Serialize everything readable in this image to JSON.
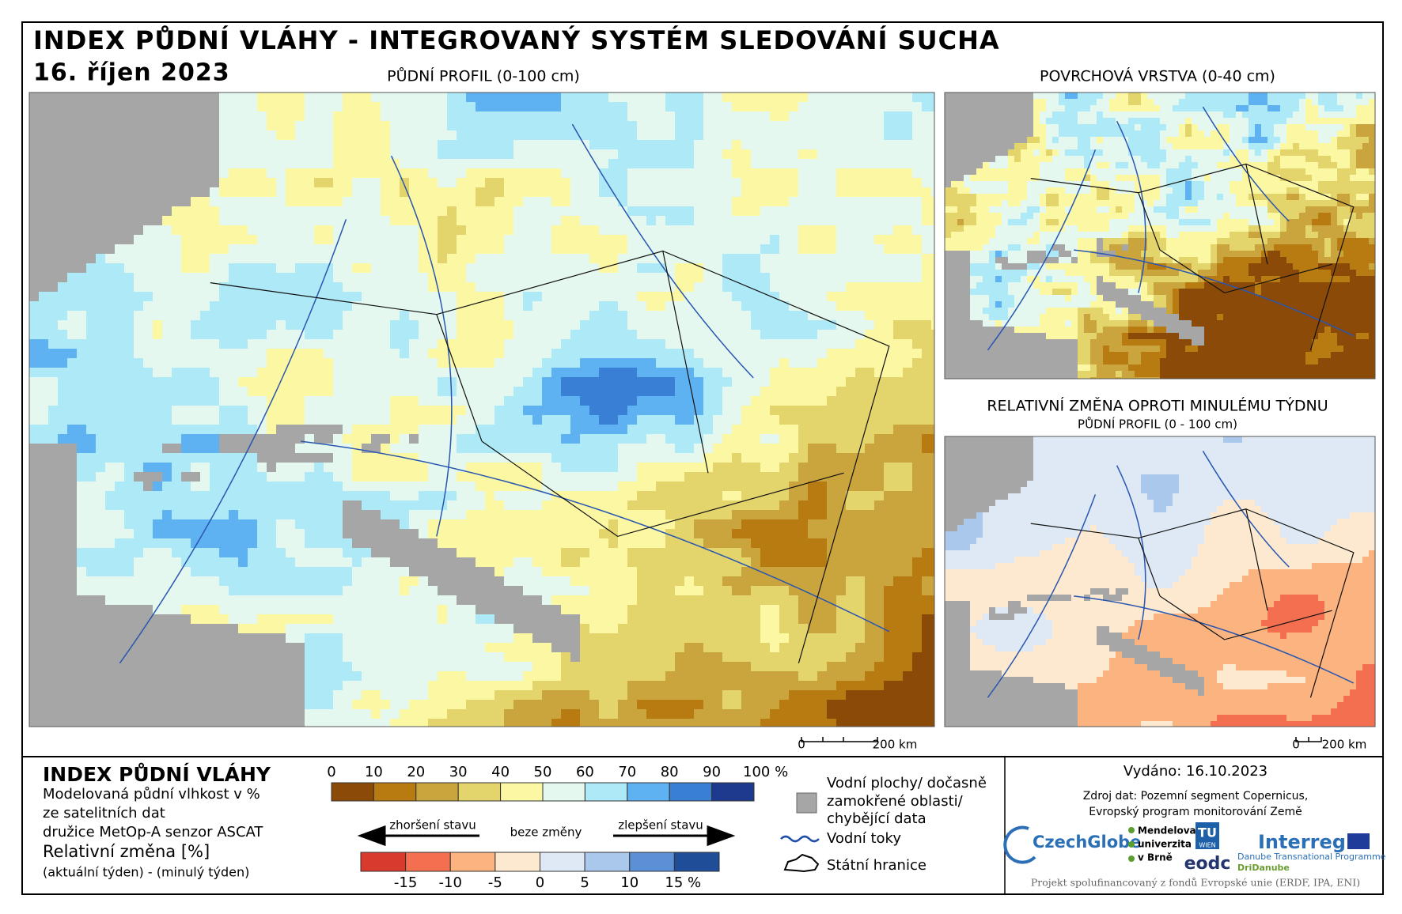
{
  "header": {
    "title": "INDEX PŮDNÍ VLÁHY - INTEGROVANÝ SYSTÉM SLEDOVÁNÍ SUCHA",
    "date": "16. říjen 2023"
  },
  "maps": [
    {
      "title": "PŮDNÍ PROFIL (0-100 cm)",
      "scale": [
        "0",
        "200 km"
      ]
    },
    {
      "title": "POVRCHOVÁ VRSTVA (0-40 cm)"
    },
    {
      "title": "RELATIVNÍ ZMĚNA OPROTI MINULÉMU TÝDNU",
      "subtitle": "PŮDNÍ PROFIL (0 - 100 cm)",
      "scale": [
        "0",
        "200 km"
      ]
    }
  ],
  "legend": {
    "title": "INDEX PŮDNÍ VLÁHY",
    "description": [
      "Modelovaná půdní vlhkost v %",
      "ze satelitních dat",
      "družice MetOp-A senzor ASCAT"
    ],
    "moisture_scale": {
      "labels": [
        "0",
        "10",
        "20",
        "30",
        "40",
        "50",
        "60",
        "70",
        "80",
        "90",
        "100 %"
      ],
      "colors": [
        "#8c4a08",
        "#b87b12",
        "#caa43d",
        "#e4d46c",
        "#fbf7a3",
        "#e4f8ef",
        "#aee9f7",
        "#5fb2f1",
        "#3a7fd6",
        "#1d3a8e"
      ]
    },
    "change_title": "Relativní změna [%]",
    "change_subtitle": "(aktuální týden) - (minulý týden)",
    "arrows": {
      "worse": "zhoršení stavu",
      "none": "beze změny",
      "better": "zlepšení stavu"
    },
    "change_scale": {
      "labels": [
        "-15",
        "-10",
        "-5",
        "0",
        "5",
        "10",
        "15 %"
      ],
      "colors": [
        "#d93a2e",
        "#f36f50",
        "#fbb37f",
        "#fde9cf",
        "#dfe9f5",
        "#aac8ec",
        "#5b8fd6",
        "#1f4d98"
      ]
    },
    "missing_color": "#a6a6a6",
    "water": [
      "Vodní plochy/ dočasně",
      "zamokřené oblasti/",
      "chybějící data"
    ],
    "rivers": "Vodní toky",
    "borders": "Státní hranice"
  },
  "footer": {
    "issued": "Vydáno: 16.10.2023",
    "source": [
      "Zdroj dat: Pozemní segment Copernicus,",
      "Evropský program monitorování Země"
    ],
    "logos": {
      "czechglobe": "CzechGlobe",
      "mendel": [
        "Mendelova",
        "univerzita",
        "v Brně"
      ],
      "tu": [
        "TU",
        "WIEN"
      ],
      "eodc": "eodc",
      "interreg": "Interreg",
      "danube": "Danube Transnational Programme",
      "dridanube": "DriDanube"
    },
    "funding": "Projekt spolufinancovaný z fondů Evropské unie (ERDF, IPA, ENI)"
  }
}
